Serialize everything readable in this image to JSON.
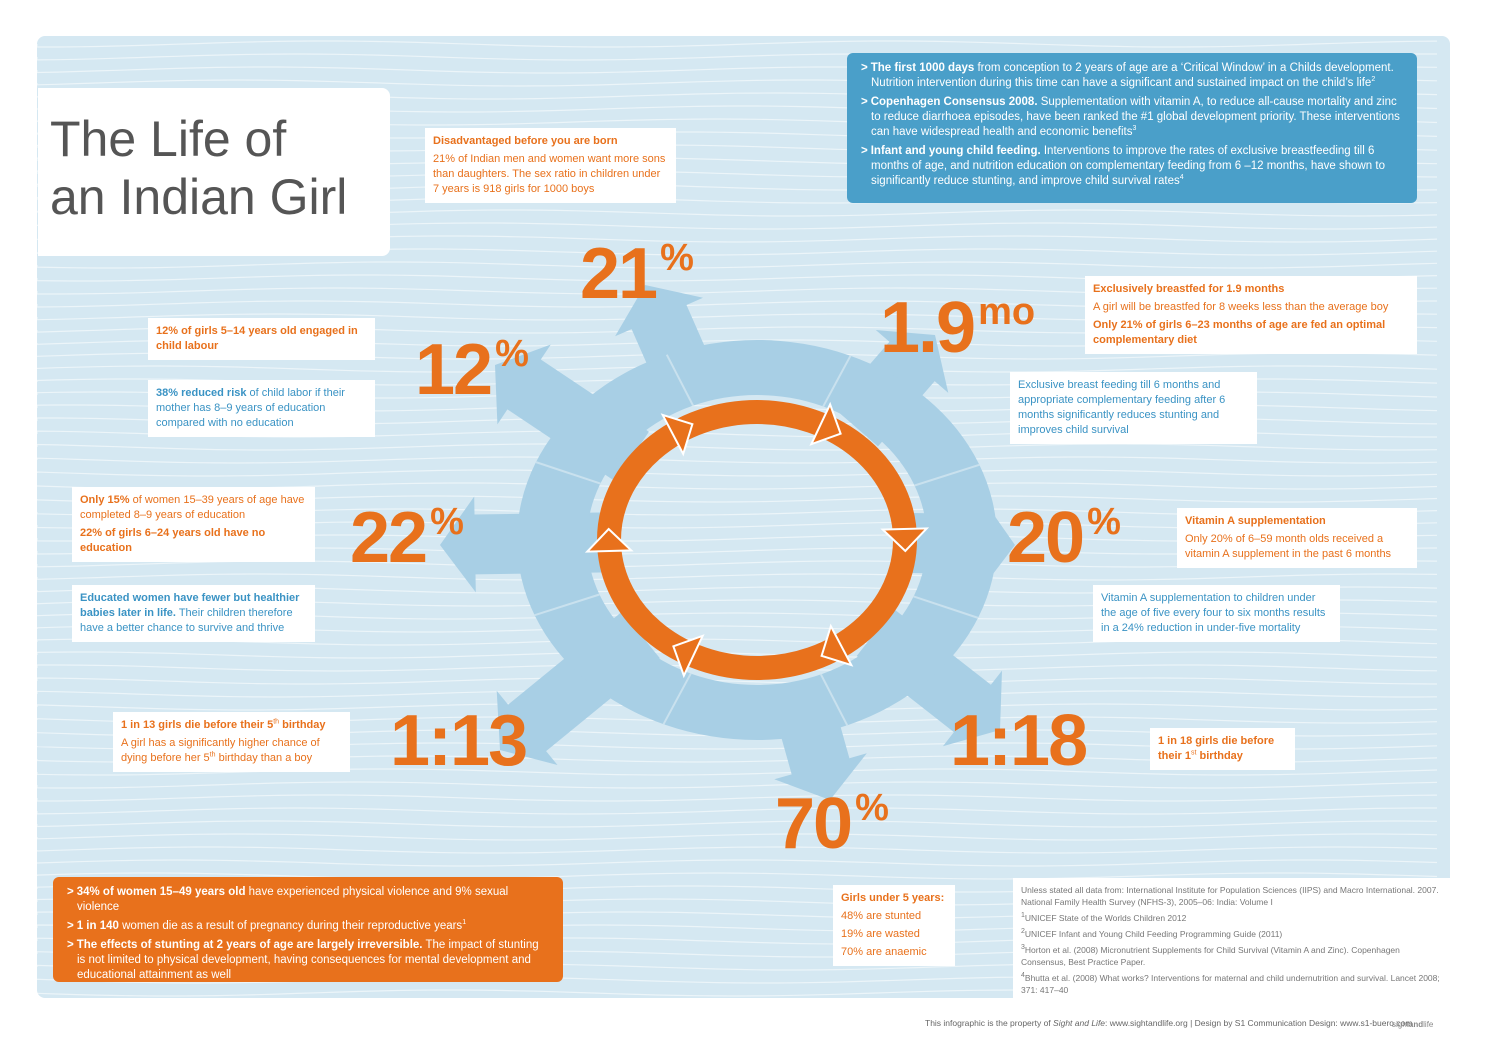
{
  "title": [
    "The Life of",
    "an Indian Girl"
  ],
  "top_info": {
    "bullet": ">",
    "paragraphs": [
      [
        {
          "bold": "The first 1000 days"
        },
        {
          "text": " from conception to 2 years of age are a ‘Critical Window’ in a Childs development. Nutrition intervention during  this time can have a significant and sustained impact on the child’s life"
        },
        {
          "sup": "2"
        }
      ],
      [
        {
          "bold": "Copenhagen Consensus 2008."
        },
        {
          "text": " Supplementation with vitamin A, to reduce all-cause mortality and zinc to reduce diarrhoea episodes, have been ranked the #1 global development priority. These interventions can have widespread health and economic benefits"
        },
        {
          "sup": "3"
        }
      ],
      [
        {
          "bold": "Infant and young child feeding."
        },
        {
          "text": " Interventions to improve the rates of exclusive breastfeeding till 6 months of age, and nutrition education on complementary feeding from 6 –12 months, have shown to significantly reduce stunting, and improve child survival rates"
        },
        {
          "sup": "4"
        }
      ]
    ]
  },
  "stats": [
    {
      "value": "21",
      "unit": "%"
    },
    {
      "value": "1.9",
      "unit": "mo"
    },
    {
      "value": "12",
      "unit": "%"
    },
    {
      "value": "22",
      "unit": "%"
    },
    {
      "value": "20",
      "unit": "%"
    },
    {
      "value": "1:13"
    },
    {
      "value": "1:18"
    },
    {
      "value": "70",
      "unit": "%"
    }
  ],
  "callouts": [
    [
      [
        {
          "bold": "Disadvantaged before you are born"
        }
      ],
      [
        {
          "text": "21% of Indian men and women want more sons than daughters. The sex ratio in children under 7 years is 918 girls for 1000 boys"
        }
      ]
    ],
    [
      [
        {
          "bold": "Exclusively breastfed for 1.9 months"
        }
      ],
      [
        {
          "text": "A girl will be breastfed for 8 weeks less than the average boy"
        }
      ],
      [
        {
          "bold": "Only 21% of girls 6–23 months of age are fed an optimal complementary diet"
        }
      ]
    ],
    [
      [
        {
          "text": "Exclusive breast feeding till 6 months and appropriate complementary feeding after 6 months significantly reduces stunting and improves child survival"
        }
      ]
    ],
    [
      [
        {
          "bold": "12% of girls 5–14 years old engaged in child labour"
        }
      ]
    ],
    [
      [
        {
          "bold": "38% reduced risk"
        },
        {
          "text": " of child labor if their mother has 8–9 years of education compared with no education"
        }
      ]
    ],
    [
      [
        {
          "bold": "Only 15%"
        },
        {
          "text": " of women 15–39 years of age have completed 8–9 years of education"
        }
      ],
      [
        {
          "bold": "22% of girls 6–24 years old have no education"
        }
      ]
    ],
    [
      [
        {
          "bold": "Educated women have fewer but healthier babies later in life."
        },
        {
          "text": " Their children therefore have a better chance to survive and thrive"
        }
      ]
    ],
    [
      [
        {
          "bold": "Vitamin A supplementation"
        }
      ],
      [
        {
          "text": "Only 20% of 6–59 month olds received a vitamin A supplement in the past 6 months"
        }
      ]
    ],
    [
      [
        {
          "text": "Vitamin A supplementation to children under the age of five every four to six months results in a 24% reduction in under-five mortality"
        }
      ]
    ],
    [
      [
        {
          "bold": "1 in 13 girls die before their 5"
        },
        {
          "sup": "th"
        },
        {
          "bold": " birthday"
        }
      ],
      [
        {
          "text": "A girl has a significantly higher chance of dying before her 5"
        },
        {
          "sup": "th"
        },
        {
          "text": " birthday than a boy"
        }
      ]
    ],
    [
      [
        {
          "bold": "1 in 18 girls die before their 1"
        },
        {
          "sup": "st"
        },
        {
          "bold": " birthday"
        }
      ]
    ],
    [
      [
        {
          "bold": "Girls under 5 years:"
        }
      ],
      [
        {
          "text": "48% are stunted"
        }
      ],
      [
        {
          "text": "19% are wasted"
        }
      ],
      [
        {
          "text": "70% are anaemic"
        }
      ]
    ]
  ],
  "bottom_info": {
    "bullet": ">",
    "paragraphs": [
      [
        {
          "bold": "34% of women 15–49 years old"
        },
        {
          "text": " have experienced physical violence and 9% sexual violence"
        }
      ],
      [
        {
          "bold": "1 in 140"
        },
        {
          "text": " women die as a result of pregnancy during their reproductive years"
        },
        {
          "sup": "1"
        }
      ],
      [
        {
          "bold": "The effects of stunting at 2 years of age are largely irreversible."
        },
        {
          "text": " The impact of stunting is not limited to physical development, having consequences for mental development and educational attainment as well"
        }
      ]
    ]
  },
  "sources": [
    [
      {
        "text": "Unless stated all data from: International Institute for Population Sciences (IIPS) and Macro International. 2007. National Family Health Survey (NFHS-3), 2005–06: India: Volume I"
      }
    ],
    [
      {
        "sup": "1"
      },
      {
        "text": "UNICEF State of the Worlds Children 2012"
      }
    ],
    [
      {
        "sup": "2"
      },
      {
        "text": "UNICEF Infant and Young Child Feeding Programming Guide (2011)"
      }
    ],
    [
      {
        "sup": "3"
      },
      {
        "text": "Horton et al. (2008) Micronutrient Supplements for Child Survival (Vitamin A and Zinc). Copenhagen Consensus, Best Practice Paper."
      }
    ],
    [
      {
        "sup": "4"
      },
      {
        "text": "Bhutta et al. (2008) What works? Interventions for maternal and child undernutrition and survival. Lancet 2008; 371: 417–40"
      }
    ]
  ],
  "footer": [
    {
      "text": "This infographic is the property of "
    },
    {
      "italic": "Sight and Life"
    },
    {
      "text": ": www.sightandlife.org | Design by S1 Communication Design: www.s1-buero.com"
    }
  ],
  "logo": [
    {
      "text": "sight"
    },
    {
      "bold": "and"
    },
    {
      "text": "life"
    }
  ]
}
